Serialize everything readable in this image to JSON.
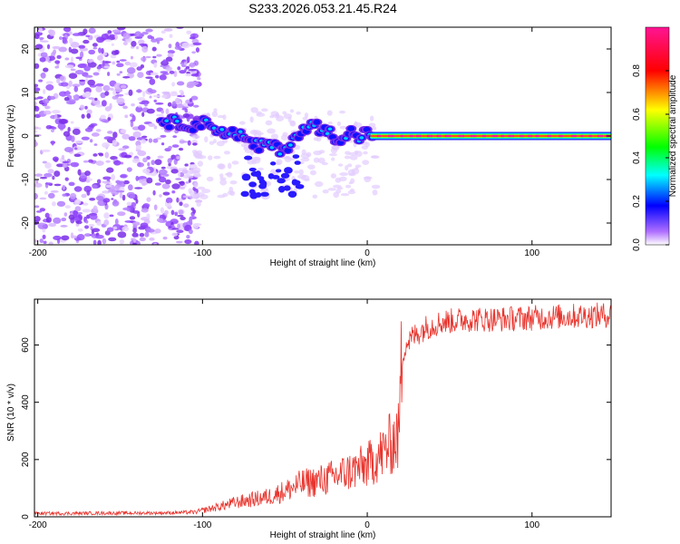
{
  "title": "S233.2026.053.21.45.R24",
  "chart_data": [
    {
      "type": "heatmap",
      "xlabel": "Height of straight line (km)",
      "ylabel": "Frequency (Hz)",
      "xlim": [
        -202,
        148
      ],
      "ylim": [
        -25,
        25
      ],
      "xticks": [
        -200,
        -100,
        0,
        100
      ],
      "yticks": [
        -20,
        -10,
        0,
        10,
        20
      ],
      "colorbar": {
        "label": "Normalized spectral amplitude",
        "range": [
          0,
          1
        ],
        "ticks": [
          "0.0",
          "0.2",
          "0.4",
          "0.6",
          "0.8"
        ],
        "colors": [
          "#ffffff",
          "#9b30ff",
          "#0000ff",
          "#00ffff",
          "#00ff00",
          "#ffff00",
          "#ff0000",
          "#ff1493"
        ]
      },
      "trace": {
        "x": [
          -125,
          -115,
          -105,
          -98,
          -92,
          -85,
          -78,
          -72,
          -66,
          -60,
          -55,
          -50,
          -46,
          -42,
          -38,
          -34,
          -30,
          -26,
          -22,
          -18,
          -14,
          -10,
          -6,
          -2,
          2,
          10,
          40,
          80,
          120,
          148
        ],
        "y": [
          3.5,
          3,
          2.5,
          3,
          2,
          0.5,
          0.5,
          -1.5,
          -2.5,
          -1.5,
          -3,
          -3,
          -1,
          0.5,
          1.2,
          2.5,
          2,
          1.5,
          0.5,
          -0.5,
          0,
          1,
          -1,
          1,
          0.3,
          0,
          0,
          0,
          0,
          0
        ]
      },
      "noise_region": [
        -202,
        -108
      ]
    },
    {
      "type": "line",
      "xlabel": "Height of straight line (km)",
      "ylabel": "SNR (10 * v/v)",
      "xlim": [
        -202,
        148
      ],
      "ylim": [
        0,
        760
      ],
      "xticks": [
        -200,
        -100,
        0,
        100
      ],
      "yticks": [
        0,
        200,
        400,
        600
      ],
      "color": "#e8352e",
      "series": [
        {
          "x": [
            -202,
            -180,
            -160,
            -140,
            -120,
            -105,
            -100,
            -90,
            -80,
            -70,
            -60,
            -50,
            -40,
            -30,
            -20,
            -10,
            0,
            10,
            15,
            19,
            21,
            23,
            28,
            35,
            45,
            60,
            80,
            100,
            120,
            148
          ],
          "y": [
            12,
            12,
            13,
            13,
            14,
            16,
            22,
            35,
            50,
            60,
            70,
            90,
            115,
            125,
            140,
            160,
            180,
            225,
            260,
            280,
            550,
            600,
            630,
            660,
            680,
            690,
            690,
            695,
            700,
            705
          ]
        }
      ]
    }
  ]
}
